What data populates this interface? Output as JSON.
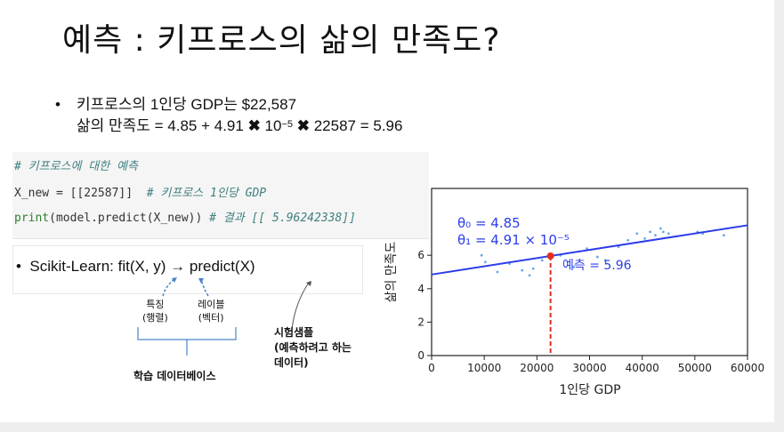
{
  "title": "예측 : 키프로스의 삶의 만족도?",
  "bullet": {
    "line1": "키프로스의 1인당 GDP는 $22,587",
    "line2_prefix": "삶의 만족도 = 4.85 + 4.91 ",
    "times1": "✖",
    "ten": " 10",
    "exp": "−5",
    "times2": "✖",
    "line2_suffix": " 22587 = 5.96"
  },
  "code": {
    "line1": "# 키프로스에 대한 예측",
    "line2_code": "X_new = [[22587]]  ",
    "line2_comment": "# 키프로스 1인당 GDP",
    "line3_fn": "print",
    "line3_code": "(model.predict(X_new)) ",
    "line3_comment": "# 결과 [[ 5.96242338]]"
  },
  "sklearn": {
    "bullet": "•",
    "text": "Scikit-Learn: fit(X, y) → predict(X)"
  },
  "annotations": {
    "feature_l1": "특징",
    "feature_l2": "(행렬)",
    "label_l1": "레이블",
    "label_l2": "(벡터)",
    "sample_l1": "시험샘플",
    "sample_l2": "(예측하려고 하는",
    "sample_l3": "데이터)",
    "training": "학습 데이터베이스"
  },
  "colors": {
    "line": "#2d3ce8",
    "points": "#6aa8e8",
    "marker": "#e52c1f",
    "code_comment": "#3f7f7f",
    "code_fn": "#2f7f2f"
  },
  "chart_data": {
    "type": "scatter",
    "xlabel": "1인당 GDP",
    "ylabel": "삶의 만족도",
    "xlim": [
      0,
      60000
    ],
    "ylim": [
      0,
      10
    ],
    "xticks": [
      0,
      10000,
      20000,
      30000,
      40000,
      50000,
      60000
    ],
    "yticks": [
      0,
      2,
      4,
      6
    ],
    "theta0_label": "θ₀ = 4.85",
    "theta1_label": "θ₁ = 4.91 × 10⁻⁵",
    "prediction_label": "예측 = 5.96",
    "model": {
      "intercept": 4.85,
      "slope": 4.91e-05
    },
    "prediction": {
      "x": 22587,
      "y": 5.96
    },
    "points": [
      [
        9500,
        6.0
      ],
      [
        10200,
        5.6
      ],
      [
        12500,
        5.0
      ],
      [
        14800,
        5.5
      ],
      [
        17200,
        5.1
      ],
      [
        18600,
        4.8
      ],
      [
        19300,
        5.2
      ],
      [
        21000,
        5.7
      ],
      [
        24500,
        6.0
      ],
      [
        27000,
        5.3
      ],
      [
        29500,
        6.4
      ],
      [
        31500,
        5.9
      ],
      [
        33000,
        5.7
      ],
      [
        35500,
        6.5
      ],
      [
        37300,
        6.9
      ],
      [
        39000,
        7.3
      ],
      [
        40500,
        7.0
      ],
      [
        41500,
        7.4
      ],
      [
        42500,
        7.2
      ],
      [
        43500,
        7.6
      ],
      [
        44000,
        7.4
      ],
      [
        45000,
        7.3
      ],
      [
        50500,
        7.4
      ],
      [
        51500,
        7.3
      ],
      [
        55500,
        7.2
      ]
    ]
  }
}
